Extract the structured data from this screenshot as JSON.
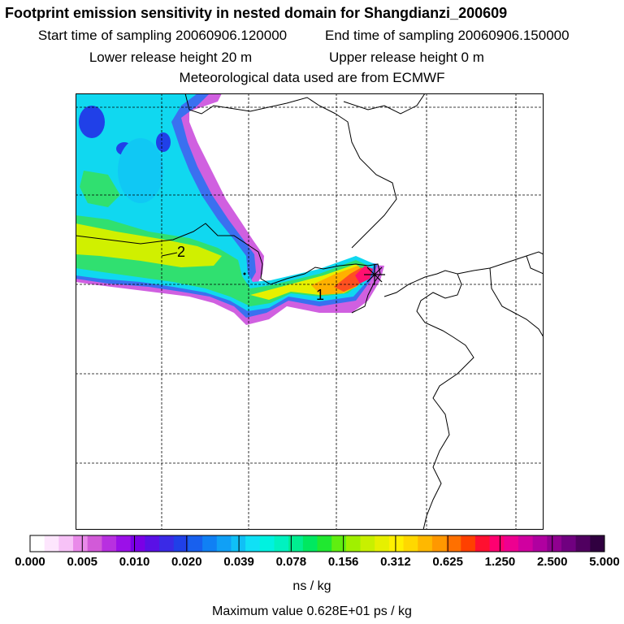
{
  "header": {
    "title": "Footprint emission sensitivity in nested domain for Shangdianzi_200609",
    "start_label": "Start time of sampling 20060906.120000",
    "end_label": "End time of sampling 20060906.150000",
    "lower_label": "Lower release height   20 m",
    "upper_label": "Upper release height    0 m",
    "met_label": "Meteorological data used are from ECMWF"
  },
  "map": {
    "contour_labels": [
      "2",
      "1"
    ],
    "station_marker": "receptor-star"
  },
  "colorbar": {
    "ticks": [
      "0.000",
      "0.005",
      "0.010",
      "0.020",
      "0.039",
      "0.078",
      "0.156",
      "0.312",
      "0.625",
      "1.250",
      "2.500",
      "5.000"
    ],
    "colors": [
      "#ffffff",
      "#fde6fd",
      "#f7c2f7",
      "#e98ae9",
      "#d25ad8",
      "#b830e0",
      "#9b10e8",
      "#7a00e6",
      "#5a10e6",
      "#3a2ae6",
      "#2040e8",
      "#1860ee",
      "#1080f4",
      "#10a0f6",
      "#10c0f6",
      "#10e0f6",
      "#00f2e0",
      "#00f2c0",
      "#00ee90",
      "#00e860",
      "#20e830",
      "#60ee10",
      "#a0f000",
      "#c8f000",
      "#e6f000",
      "#fff000",
      "#ffd800",
      "#ffb800",
      "#ff9800",
      "#ff7000",
      "#ff4000",
      "#ff1030",
      "#ff0070",
      "#ee0090",
      "#d000a0",
      "#b000a0",
      "#900090",
      "#700080",
      "#500060",
      "#300040"
    ],
    "unit": "ns / kg",
    "max_text": "Maximum value  0.628E+01 ps / kg"
  }
}
